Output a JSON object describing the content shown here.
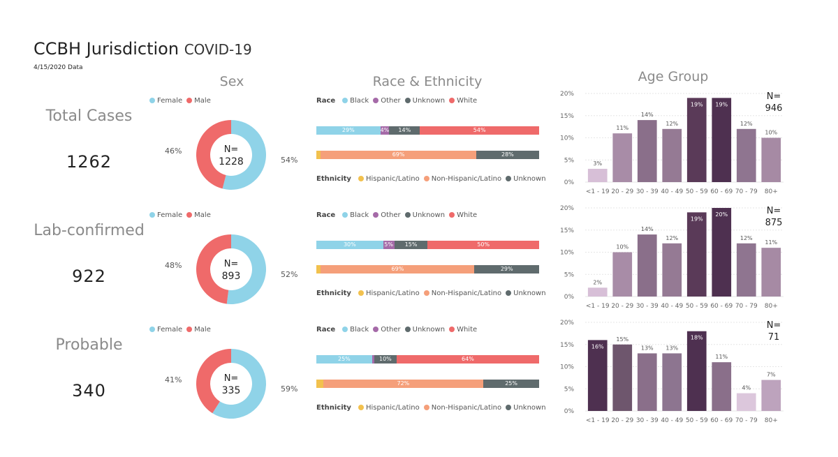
{
  "header": {
    "title": "CCBH Jurisdiction",
    "subtitle": "COVID-19",
    "date": "4/15/2020 Data"
  },
  "columns": {
    "sex": "Sex",
    "race": "Race & Ethnicity",
    "age": "Age Group"
  },
  "legends": {
    "sex": [
      {
        "label": "Female",
        "color": "#8fd3e8"
      },
      {
        "label": "Male",
        "color": "#ef6a6a"
      }
    ],
    "race_title": "Race",
    "race": [
      {
        "label": "Black",
        "color": "#8fd3e8"
      },
      {
        "label": "Other",
        "color": "#a56aa8"
      },
      {
        "label": "Unknown",
        "color": "#5f6b6d"
      },
      {
        "label": "White",
        "color": "#ef6a6a"
      }
    ],
    "eth_title": "Ethnicity",
    "ethnicity": [
      {
        "label": "Hispanic/Latino",
        "color": "#f2c14e"
      },
      {
        "label": "Non-Hispanic/Latino",
        "color": "#f59f7a"
      },
      {
        "label": "Unknown",
        "color": "#5f6b6d"
      }
    ]
  },
  "chart_data": [
    {
      "row": "Total Cases",
      "total": "1262",
      "sex": {
        "type": "pie",
        "n_label": "N=",
        "n": "1228",
        "female": 54,
        "male": 46,
        "female_label": "54%",
        "male_label": "46%"
      },
      "race": {
        "type": "bar",
        "values": [
          29,
          4,
          14,
          54
        ],
        "labels": [
          "29%",
          "4%",
          "14%",
          "54%"
        ]
      },
      "ethnicity": {
        "type": "bar",
        "values": [
          2,
          69,
          28
        ],
        "labels": [
          "",
          "69%",
          "28%"
        ]
      },
      "age": {
        "type": "bar",
        "n_label": "N=",
        "n": "946",
        "categories": [
          "<1 - 19",
          "20 - 29",
          "30 - 39",
          "40 - 49",
          "50 - 59",
          "60 - 69",
          "70 - 79",
          "80+"
        ],
        "values": [
          3,
          11,
          14,
          12,
          19,
          19,
          12,
          10
        ],
        "labels": [
          "3%",
          "11%",
          "14%",
          "12%",
          "19%",
          "19%",
          "12%",
          "10%"
        ],
        "yticks": [
          "0%",
          "5%",
          "10%",
          "15%",
          "20%"
        ],
        "ylim": [
          0,
          20
        ]
      }
    },
    {
      "row": "Lab-confirmed",
      "total": "922",
      "sex": {
        "type": "pie",
        "n_label": "N=",
        "n": "893",
        "female": 52,
        "male": 48,
        "female_label": "52%",
        "male_label": "48%"
      },
      "race": {
        "type": "bar",
        "values": [
          30,
          5,
          15,
          50
        ],
        "labels": [
          "30%",
          "5%",
          "15%",
          "50%"
        ]
      },
      "ethnicity": {
        "type": "bar",
        "values": [
          2,
          69,
          29
        ],
        "labels": [
          "",
          "69%",
          "29%"
        ]
      },
      "age": {
        "type": "bar",
        "n_label": "N=",
        "n": "875",
        "categories": [
          "<1 - 19",
          "20 - 29",
          "30 - 39",
          "40 - 49",
          "50 - 59",
          "60 - 69",
          "70 - 79",
          "80+"
        ],
        "values": [
          2,
          10,
          14,
          12,
          19,
          20,
          12,
          11
        ],
        "labels": [
          "2%",
          "10%",
          "14%",
          "12%",
          "19%",
          "20%",
          "12%",
          "11%"
        ],
        "yticks": [
          "0%",
          "5%",
          "10%",
          "15%",
          "20%"
        ],
        "ylim": [
          0,
          20
        ]
      }
    },
    {
      "row": "Probable",
      "total": "340",
      "sex": {
        "type": "pie",
        "n_label": "N=",
        "n": "335",
        "female": 59,
        "male": 41,
        "female_label": "59%",
        "male_label": "41%"
      },
      "race": {
        "type": "bar",
        "values": [
          25,
          1,
          10,
          64
        ],
        "labels": [
          "25%",
          "",
          "10%",
          "64%"
        ]
      },
      "ethnicity": {
        "type": "bar",
        "values": [
          3,
          72,
          25
        ],
        "labels": [
          "",
          "72%",
          "25%"
        ]
      },
      "age": {
        "type": "bar",
        "n_label": "N=",
        "n": "71",
        "categories": [
          "<1 - 19",
          "20 - 29",
          "30 - 39",
          "40 - 49",
          "50 - 59",
          "60 - 69",
          "70 - 79",
          "80+"
        ],
        "values": [
          16,
          15,
          13,
          13,
          18,
          11,
          4,
          7
        ],
        "labels": [
          "16%",
          "15%",
          "13%",
          "13%",
          "18%",
          "11%",
          "4%",
          "7%"
        ],
        "yticks": [
          "0%",
          "5%",
          "10%",
          "15%",
          "20%"
        ],
        "ylim": [
          0,
          20
        ]
      }
    }
  ]
}
